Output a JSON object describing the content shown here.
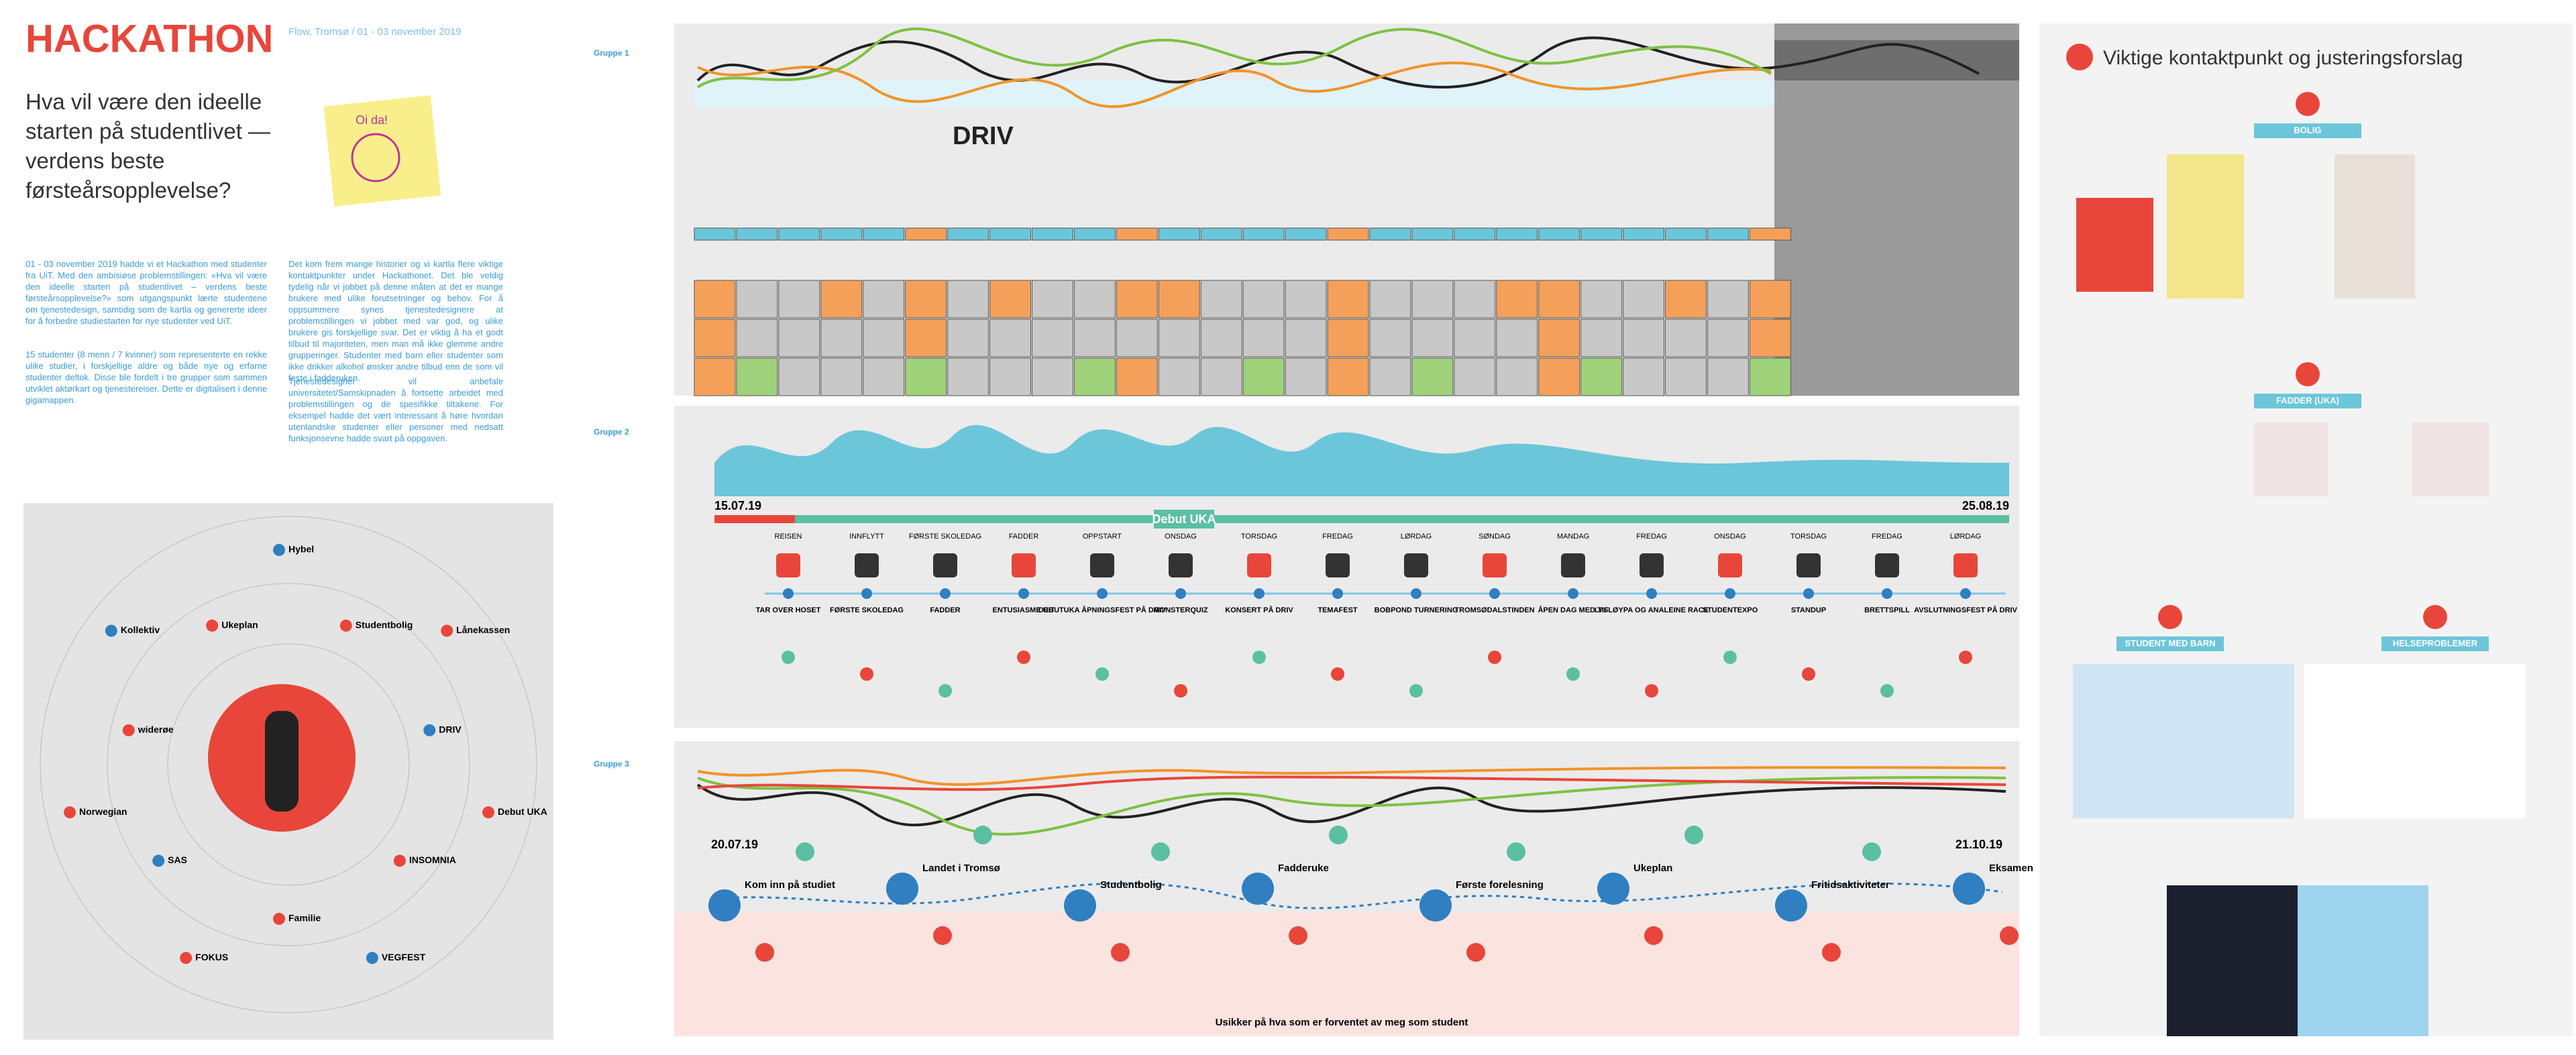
{
  "header": {
    "title": "HACKATHON",
    "subtitle": "Flow, Tromsø / 01 - 03 november 2019",
    "question": "Hva vil være den ideelle starten på studentlivet — verdens beste førsteårsopplevelse?",
    "sticky_note": "Oi da!"
  },
  "intro": {
    "paragraphs": [
      "01 - 03 november 2019 hadde vi et Hackathon med studenter fra UiT. Med den ambisiøse problemstillingen: «Hva vil være den ideelle starten på studentlivet – verdens beste førsteårsopplevelse?» som utgangspunkt lærte studentene om tjenestedesign, samtidig som de kartla og genererte ideer for å forbedre studiestarten for nye studenter ved UiT.",
      "15 studenter (8 menn / 7 kvinner) som representerte en rekke ulike studier, i forskjellige aldre og både nye og erfarne studenter deltok. Disse ble fordelt i tre grupper som sammen utviklet aktørkart og tjenestereiser. Dette er digitalisert i denne gigamappen.",
      "Det kom frem mange historier og vi kartla flere viktige kontaktpunkter under Hackathonet. Det ble veldig tydelig når vi jobbet på denne måten at det er mange brukere med ulike forutsetninger og behov. For å oppsummere synes tjenestedesignere at problemstillingen vi jobbet med var god, og ulike brukere gis forskjellige svar. Det er viktig å ha et godt tilbud til majoriteten, men man må ikke glemme andre grupperinger. Studenter med barn eller studenter som ikke drikker alkohol ønsker andre tilbud enn de som vil feste i fadderuken.",
      "Tjenestedesigner vil anbefale universitetet/Samskipnaden å fortsette arbeidet med problemstillingen og de spesifikke tiltakene. For eksempel hadde det vært interessant å høre hvordan utenlandske studenter eller personer med nedsatt funksjonsevne hadde svart på oppgaven."
    ]
  },
  "circle_map": {
    "labels": [
      "Hybel",
      "Studentbolig",
      "Lånekassen",
      "DRIV",
      "Debut UKA",
      "INSOMNIA",
      "VEGFEST",
      "Familie",
      "FOKUS",
      "SAS",
      "Norwegian",
      "widerøe",
      "Kollektiv",
      "Ukeplan"
    ]
  },
  "groups": [
    {
      "label": "Gruppe 1",
      "brand": "DRIV"
    },
    {
      "label": "Gruppe 2",
      "start": "15.07.19",
      "end": "25.08.19",
      "banner": "Debut UKA",
      "days": [
        "REISEN",
        "INNFLYTT",
        "FØRSTE SKOLEDAG",
        "FADDER",
        "OPPSTART",
        "ONSDAG",
        "TORSDAG",
        "FREDAG",
        "LØRDAG",
        "SØNDAG",
        "MANDAG",
        "FREDAG",
        "ONSDAG",
        "TORSDAG",
        "FREDAG",
        "LØRDAG"
      ],
      "events": [
        "TAR OVER HOSET",
        "FØRSTE SKOLEDAG",
        "FADDER",
        "ENTUSIASME UIT",
        "DEBUTUKA ÅPNINGSFEST PÅ DRIV",
        "MONSTERQUIZ",
        "KONSERT PÅ DRIV",
        "TEMAFEST",
        "BOBPOND TURNERING",
        "TROMSØDALSTINDEN",
        "ÅPEN DAG MED TIF",
        "LYSLØYPA OG ANALEINE RACE",
        "STUDENTEXPO",
        "STANDUP",
        "BRETTSPILL",
        "AVSLUTNINGSFEST PÅ DRIV"
      ]
    },
    {
      "label": "Gruppe 3",
      "start": "20.07.19",
      "end": "21.10.19",
      "steps": [
        "Kom inn på studiet",
        "Landet i Tromsø",
        "Studentbolig",
        "Fadderuke",
        "Første forelesning",
        "Ukeplan",
        "Fritidsaktiviteter",
        "Eksamen"
      ],
      "closing": "Usikker på hva som er forventet av meg som student"
    }
  ],
  "right_panel": {
    "title": "Viktige kontaktpunkt og justeringsforslag",
    "sections": [
      "BOLIG",
      "FADDER (UKA)",
      "STUDENT MED BARN",
      "HELSEPROBLEMER"
    ]
  }
}
